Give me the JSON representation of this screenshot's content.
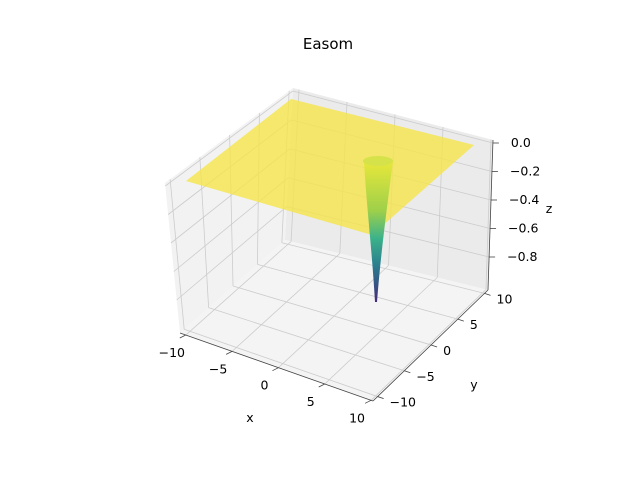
{
  "chart_data": {
    "type": "surface",
    "title": "Easom",
    "xlabel": "x",
    "ylabel": "y",
    "zlabel": "z",
    "xlim": [
      -10,
      10
    ],
    "ylim": [
      -10,
      10
    ],
    "zlim": [
      -1,
      0
    ],
    "x_ticks": [
      {
        "label": "−10"
      },
      {
        "label": "−5"
      },
      {
        "label": "0"
      },
      {
        "label": "5"
      },
      {
        "label": "10"
      }
    ],
    "y_ticks": [
      {
        "label": "−10"
      },
      {
        "label": "−5"
      },
      {
        "label": "0"
      },
      {
        "label": "5"
      },
      {
        "label": "10"
      }
    ],
    "z_ticks": [
      {
        "label": "0.0"
      },
      {
        "label": "−0.2"
      },
      {
        "label": "−0.4"
      },
      {
        "label": "−0.6"
      },
      {
        "label": "−0.8"
      }
    ],
    "surface": {
      "function": "easom",
      "plateau_z": 0.0,
      "minimum": {
        "x": 3.14,
        "y": 3.14,
        "z": -1.0
      },
      "colormap": "viridis",
      "alpha": 0.6
    },
    "grid": true,
    "colors": {
      "plateau": "#f5e54a",
      "pane_back": "#f2f2f2",
      "pane_side": "#ebebeb",
      "pane_floor": "#f4f4f4",
      "grid": "#cccccc"
    }
  }
}
